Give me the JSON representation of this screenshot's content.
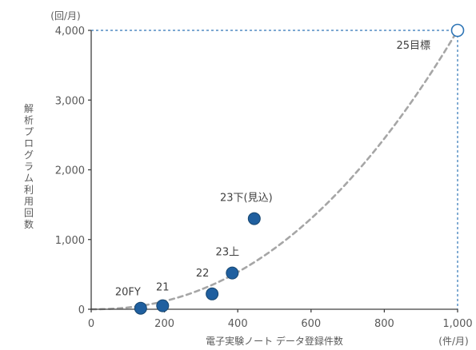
{
  "chart_data": {
    "type": "scatter",
    "title": "",
    "xlabel": "電子実験ノート データ登録件数",
    "xunit": "(件/月)",
    "ylabel": "解析プログラム利用回数",
    "yunit": "(回/月)",
    "xlim": [
      0,
      1000
    ],
    "ylim": [
      0,
      4000
    ],
    "xticks": [
      0,
      200,
      400,
      600,
      800,
      1000
    ],
    "xtick_labels": [
      "0",
      "200",
      "400",
      "600",
      "800",
      "1,000"
    ],
    "yticks": [
      0,
      1000,
      2000,
      3000,
      4000
    ],
    "ytick_labels": [
      "0",
      "1,000",
      "2,000",
      "3,000",
      "4,000"
    ],
    "grid": false,
    "points": [
      {
        "label": "20FY",
        "x": 135,
        "y": 15
      },
      {
        "label": "21",
        "x": 195,
        "y": 50
      },
      {
        "label": "22",
        "x": 330,
        "y": 220
      },
      {
        "label": "23上",
        "x": 385,
        "y": 520
      },
      {
        "label": "23下(見込)",
        "x": 445,
        "y": 1300
      }
    ],
    "target": {
      "label": "25目標",
      "x": 1000,
      "y": 4000
    },
    "trend_curve": {
      "style": "dashed",
      "shape": "power",
      "exponent": 2.2
    },
    "colors": {
      "point_fill": "#1f5f9f",
      "point_stroke": "#17466f",
      "target_stroke": "#2e75b6",
      "guide_line": "#2e75b6",
      "trend_line": "#a6a6a6",
      "axis": "#404040",
      "text": "#595959"
    }
  }
}
